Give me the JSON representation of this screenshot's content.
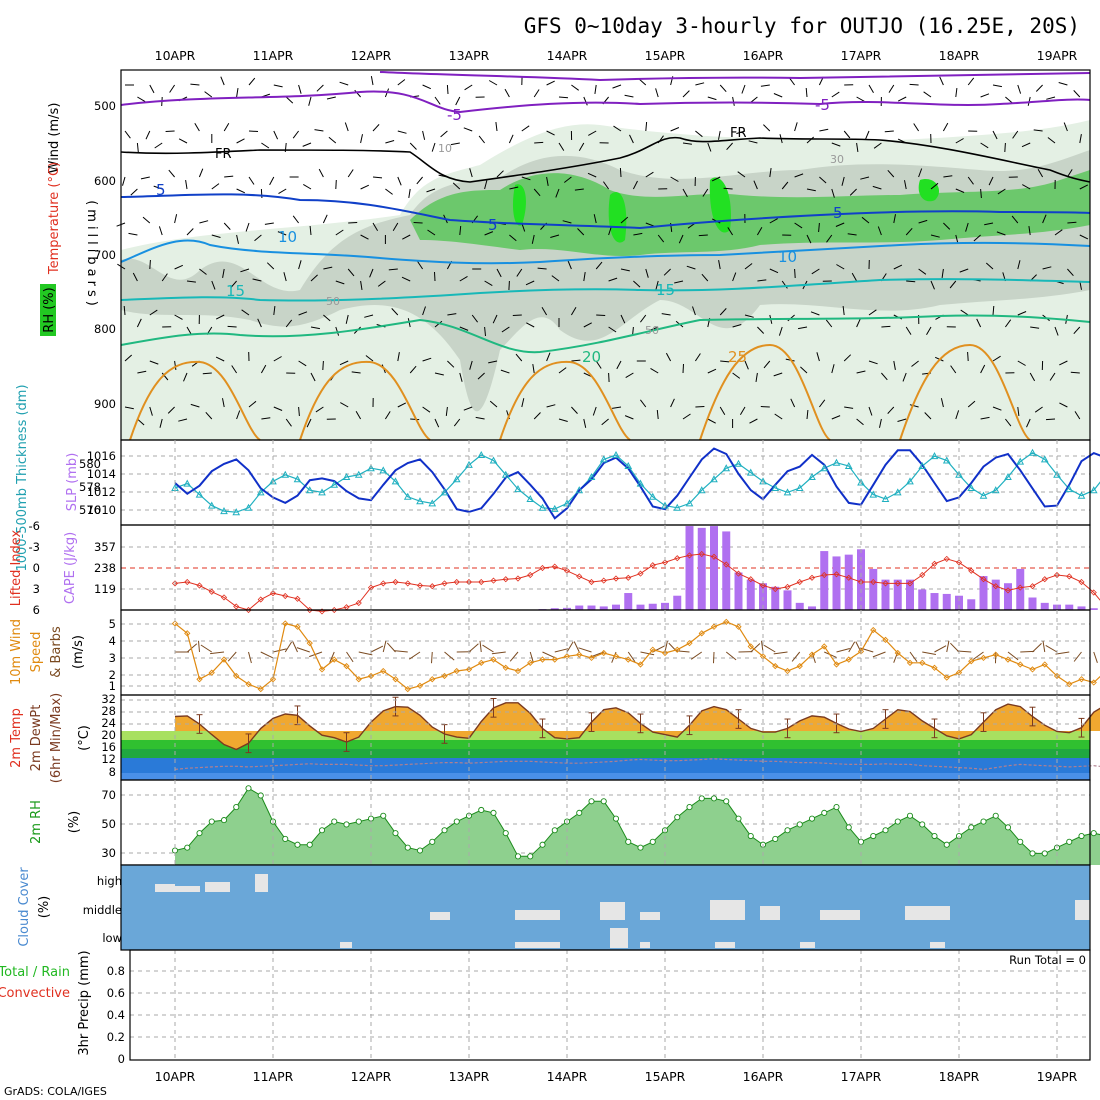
{
  "title": "GFS 0~10day 3-hourly for OUTJO (16.25E, 20S)",
  "footer": "GrADS: COLA/IGES",
  "dates": [
    "10APR",
    "11APR",
    "12APR",
    "13APR",
    "14APR",
    "15APR",
    "16APR",
    "17APR",
    "18APR",
    "19APR"
  ],
  "colors": {
    "grid": "#aaaaaa",
    "slp": "#1030c8",
    "thickness": "#20b0c0",
    "cape": "#b070f0",
    "lifted_index": "#e03020",
    "wind_speed": "#e08a10",
    "wind_barb": "#7a4a20",
    "rh_fill": "#2ec82e",
    "cloud_bg": "#6aa7d8",
    "cloud_bar": "#e6e6e6"
  },
  "panels": {
    "upper": {
      "label_wind": "Wind (m/s)",
      "label_temp": "Temperature (°C)",
      "label_rh": "RH (%)",
      "label_mb": "(millibars)",
      "yticks": [
        "500",
        "600",
        "700",
        "800",
        "900"
      ],
      "contours": {
        "minus5": "-5",
        "fr": "FR",
        "plus5": "5",
        "plus10": "10",
        "plus15": "15",
        "plus20": "20",
        "plus25": "25",
        "rh50": "50",
        "rh30": "30",
        "rh10": "10"
      }
    },
    "slp": {
      "label_thick": "1000-500mb Thickness (dm)",
      "label_slp": "SLP (mb)",
      "left_ticks": [
        "580",
        "578",
        "576"
      ],
      "right_ticks": [
        "1016",
        "1014",
        "1012",
        "1010"
      ]
    },
    "cape": {
      "label_li": "Lifted Index",
      "label_cape": "CAPE (J/kg)",
      "li_ticks": [
        "-6",
        "-3",
        "0",
        "3",
        "6"
      ],
      "cape_ticks": [
        "357",
        "238",
        "119"
      ]
    },
    "wind10": {
      "label1": "10m Wind",
      "label2": "Speed",
      "label3": "& Barbs",
      "label4": "(m/s)",
      "yticks": [
        "5",
        "4",
        "3",
        "2",
        "1"
      ]
    },
    "temp": {
      "label1": "2m Temp",
      "label2": "2m DewPt",
      "label3": "(6hr Min/Max)",
      "label4": "(°C)",
      "yticks": [
        "32",
        "28",
        "24",
        "20",
        "16",
        "12",
        "8"
      ]
    },
    "rh2m": {
      "label": "2m RH",
      "unit": "(%)",
      "yticks": [
        "70",
        "50",
        "30"
      ]
    },
    "cloud": {
      "label": "Cloud Cover",
      "unit": "(%)",
      "levels": [
        "high",
        "middle",
        "low"
      ]
    },
    "precip": {
      "label1": "Total / Rain",
      "label2": "Convective",
      "label3": "3hr Precip (mm)",
      "run_total": "Run Total = 0",
      "yticks": [
        "0.8",
        "0.6",
        "0.4",
        "0.2",
        "0"
      ]
    }
  },
  "chart_data": {
    "type": "line",
    "x_unit": "3-hourly steps from 10APR 00Z",
    "x_range_days": [
      0,
      9.45
    ],
    "slp": {
      "name": "SLP (mb)",
      "ylim": [
        1009,
        1017.5
      ],
      "values": [
        1013.2,
        1012.0,
        1012.9,
        1014.5,
        1015.3,
        1015.8,
        1014.6,
        1012.6,
        1011.6,
        1011.0,
        1011.8,
        1013.5,
        1013.7,
        1013.4,
        1012.3,
        1011.5,
        1011.3,
        1013.0,
        1014.6,
        1015.4,
        1015.8,
        1014.4,
        1012.5,
        1010.3,
        1010.0,
        1010.4,
        1012.0,
        1013.8,
        1014.4,
        1013.0,
        1011.5,
        1009.3,
        1010.4,
        1012.4,
        1013.6,
        1015.4,
        1016.0,
        1014.8,
        1012.8,
        1010.6,
        1010.3,
        1011.8,
        1013.8,
        1015.8,
        1017.0,
        1016.4,
        1014.2,
        1012.4,
        1011.4,
        1013.0,
        1014.5,
        1015.0,
        1016.3,
        1015.2,
        1012.8,
        1011.0,
        1010.8,
        1013.0,
        1015.2,
        1016.8,
        1016.8,
        1015.2,
        1013.2,
        1011.2,
        1011.6,
        1013.2,
        1015.0,
        1016.0,
        1016.4,
        1014.6,
        1012.6,
        1010.6,
        1010.7,
        1013.0,
        1015.6,
        1016.5,
        1016.0,
        1013.9,
        1012.0,
        1010.2,
        1011.2,
        1013.2,
        1014.5,
        1015.7,
        1015.0,
        1012.7,
        1010.6,
        1011.3,
        1012.5,
        1011.5,
        1010.4,
        1012.1,
        1013.2,
        1014.8,
        1016.8
      ]
    },
    "thickness": {
      "name": "1000-500mb Thickness (dm)",
      "ylim": [
        575,
        582
      ],
      "values": [
        578.0,
        578.4,
        577.4,
        576.4,
        575.9,
        575.8,
        576.2,
        577.6,
        578.6,
        579.2,
        578.8,
        577.8,
        577.6,
        578.3,
        579.0,
        579.2,
        579.8,
        579.6,
        578.6,
        577.2,
        576.8,
        576.6,
        577.6,
        578.8,
        580.1,
        581.0,
        580.5,
        579.2,
        577.9,
        577.0,
        576.2,
        576.1,
        576.6,
        577.8,
        579.0,
        580.6,
        581.0,
        580.0,
        578.4,
        577.2,
        576.4,
        576.2,
        576.6,
        577.8,
        578.8,
        579.8,
        580.2,
        579.4,
        578.6,
        578.0,
        577.6,
        578.0,
        579.0,
        579.8,
        580.3,
        580.0,
        578.5,
        577.4,
        577.0,
        577.6,
        578.6,
        580.0,
        580.9,
        580.5,
        579.2,
        578.0,
        577.3,
        577.8,
        579.0,
        580.4,
        581.2,
        580.6,
        579.2,
        577.9,
        577.3,
        577.8,
        579.2,
        580.6,
        581.1,
        580.3,
        578.8,
        577.6,
        577.0,
        577.8,
        579.2,
        580.6,
        580.8,
        579.6,
        578.0,
        577.0,
        576.8,
        577.6,
        578.6,
        579.6,
        578.2
      ]
    },
    "cape": {
      "name": "CAPE (J/kg)",
      "ylim": [
        0,
        476
      ],
      "values": [
        0,
        0,
        0,
        0,
        0,
        0,
        0,
        0,
        0,
        0,
        0,
        0,
        0,
        0,
        0,
        0,
        0,
        0,
        0,
        0,
        0,
        0,
        0,
        0,
        0,
        0,
        0,
        0,
        0,
        0,
        5,
        10,
        12,
        25,
        25,
        20,
        30,
        95,
        30,
        35,
        40,
        80,
        470,
        460,
        470,
        440,
        210,
        170,
        150,
        130,
        110,
        40,
        20,
        330,
        300,
        310,
        340,
        230,
        170,
        170,
        170,
        115,
        95,
        90,
        80,
        60,
        190,
        170,
        150,
        230,
        70,
        40,
        30,
        30,
        20,
        10,
        10,
        5,
        0,
        0,
        20,
        15,
        10,
        10,
        5,
        0,
        0,
        0,
        20,
        10,
        5,
        5,
        0,
        0,
        0,
        0
      ]
    },
    "lifted_index": {
      "name": "Lifted Index",
      "ylim": [
        6,
        -6
      ],
      "values": [
        2.2,
        2.0,
        2.5,
        3.4,
        4.2,
        5.5,
        6.0,
        4.5,
        3.6,
        4.0,
        4.4,
        6.0,
        6.2,
        6.0,
        5.6,
        5.0,
        2.8,
        2.2,
        2.0,
        2.2,
        2.5,
        2.6,
        2.2,
        2.0,
        2.0,
        2.0,
        1.8,
        1.6,
        1.5,
        1.0,
        0.0,
        -0.2,
        0.4,
        1.2,
        2.0,
        1.8,
        1.5,
        1.4,
        0.8,
        -0.4,
        -0.8,
        -1.4,
        -1.8,
        -2.0,
        -1.6,
        -0.5,
        0.8,
        1.6,
        2.5,
        3.0,
        2.7,
        2.0,
        1.4,
        1.0,
        0.9,
        1.4,
        2.0,
        2.0,
        2.2,
        2.2,
        2.2,
        1.0,
        -0.6,
        -1.3,
        -0.8,
        0.4,
        1.6,
        2.6,
        3.2,
        2.8,
        2.6,
        1.6,
        1.0,
        1.2,
        2.0,
        3.5,
        5.6,
        6.0,
        5.8,
        4.0,
        2.0,
        1.0,
        0.0,
        -0.4,
        0.2,
        1.8,
        3.2,
        4.8,
        3.2,
        1.6,
        0.5,
        -0.2,
        -0.6,
        0.0,
        1.0
      ]
    },
    "wind_speed_10m": {
      "name": "10m Wind Speed (m/s)",
      "ylim": [
        0.5,
        5.5
      ],
      "values": [
        4.8,
        4.2,
        1.4,
        1.8,
        2.6,
        1.6,
        1.1,
        0.8,
        1.4,
        4.8,
        4.6,
        3.6,
        2.0,
        2.6,
        2.2,
        1.4,
        1.6,
        1.9,
        1.4,
        0.8,
        1.0,
        1.4,
        1.6,
        1.9,
        2.0,
        2.4,
        2.6,
        2.1,
        1.9,
        2.4,
        2.6,
        2.6,
        2.8,
        2.9,
        2.7,
        3.0,
        2.8,
        2.6,
        2.3,
        3.2,
        3.0,
        3.2,
        3.6,
        4.2,
        4.6,
        4.9,
        4.6,
        3.4,
        2.8,
        2.2,
        1.9,
        2.2,
        2.9,
        3.4,
        2.3,
        2.6,
        3.1,
        4.4,
        3.8,
        3.0,
        2.4,
        2.4,
        2.1,
        1.5,
        1.8,
        2.5,
        2.7,
        2.9,
        2.6,
        2.3,
        2.0,
        2.3,
        1.6,
        1.1,
        1.4,
        1.2,
        1.9,
        2.6,
        3.0,
        3.6,
        3.2,
        2.6,
        2.2,
        1.7,
        2.4,
        3.2,
        4.2,
        3.8,
        2.6,
        2.4,
        3.4,
        2.8,
        2.2,
        2.0,
        3.0
      ]
    },
    "temp_2m": {
      "name": "2m Temp (°C)",
      "ylim": [
        6,
        33
      ],
      "values": [
        26.4,
        26.6,
        24.0,
        20.6,
        17.4,
        15.8,
        17.8,
        22.6,
        25.8,
        27.2,
        26.8,
        23.4,
        20.4,
        19.6,
        18.2,
        19.8,
        24.6,
        28.2,
        29.6,
        29.4,
        26.8,
        23.0,
        20.8,
        19.8,
        19.4,
        24.8,
        29.2,
        30.8,
        30.8,
        27.4,
        22.6,
        19.6,
        19.2,
        19.6,
        24.6,
        28.6,
        29.2,
        27.6,
        24.2,
        21.4,
        20.6,
        19.8,
        23.6,
        28.2,
        29.6,
        28.6,
        25.6,
        22.6,
        21.4,
        21.4,
        22.6,
        25.0,
        26.6,
        26.2,
        24.2,
        22.4,
        21.6,
        22.6,
        25.6,
        28.6,
        28.0,
        25.0,
        22.6,
        20.2,
        19.2,
        20.6,
        24.6,
        28.6,
        30.4,
        29.6,
        26.4,
        23.6,
        21.6,
        21.2,
        22.8,
        27.8,
        30.2,
        30.6,
        27.2,
        23.8,
        21.6,
        20.6,
        21.8,
        25.6,
        29.4,
        30.4,
        28.6,
        26.0,
        24.2,
        21.6,
        20.8,
        20.6,
        22.0,
        24.4,
        24.0
      ]
    },
    "dewpt_2m": {
      "name": "2m DewPt (°C)",
      "values": [
        9.4,
        9.8,
        10.0,
        10.2,
        10.4,
        10.4,
        10.2,
        10.4,
        10.6,
        10.8,
        11.0,
        11.2,
        11.0,
        11.0,
        11.0,
        10.8,
        10.6,
        10.6,
        10.8,
        11.0,
        11.2,
        11.4,
        11.6,
        11.6,
        11.4,
        11.6,
        11.8,
        12.0,
        12.0,
        12.0,
        11.8,
        11.6,
        11.4,
        11.4,
        11.6,
        11.8,
        12.0,
        12.4,
        12.6,
        12.4,
        12.2,
        12.2,
        12.4,
        12.6,
        12.8,
        12.6,
        12.4,
        12.2,
        12.0,
        12.0,
        11.8,
        11.6,
        11.6,
        11.4,
        11.2,
        11.0,
        11.0,
        11.0,
        11.2,
        11.0,
        11.0,
        10.6,
        10.4,
        10.2,
        10.0,
        9.8,
        9.4,
        10.0,
        10.6,
        11.0,
        10.8,
        10.6,
        10.4,
        10.2,
        10.4,
        10.6,
        10.2,
        10.0,
        9.6,
        9.4,
        9.6,
        9.8,
        9.6,
        9.4,
        9.2,
        9.4,
        9.8,
        10.0,
        9.6,
        9.4,
        9.2,
        9.4,
        9.6,
        10.0,
        10.2
      ]
    },
    "rh_2m": {
      "name": "2m RH (%)",
      "ylim": [
        22,
        80
      ],
      "values": [
        32,
        34,
        44,
        52,
        53,
        62,
        75,
        70,
        52,
        40,
        36,
        36,
        46,
        52,
        50,
        52,
        54,
        56,
        44,
        34,
        32,
        38,
        46,
        52,
        56,
        60,
        58,
        44,
        28,
        28,
        36,
        46,
        52,
        58,
        66,
        66,
        54,
        38,
        34,
        38,
        46,
        55,
        62,
        68,
        68,
        66,
        54,
        42,
        36,
        40,
        46,
        50,
        54,
        58,
        62,
        48,
        38,
        42,
        46,
        52,
        56,
        50,
        42,
        36,
        42,
        48,
        52,
        56,
        48,
        38,
        30,
        30,
        34,
        38,
        42,
        44,
        42,
        34,
        30,
        36,
        42,
        44,
        44,
        40,
        32,
        26,
        28,
        34,
        38,
        38,
        36,
        38,
        44,
        48,
        48
      ]
    },
    "precip_3hr": {
      "name": "3hr Precip (mm)",
      "ylim": [
        0,
        1.0
      ],
      "run_total": 0
    }
  }
}
